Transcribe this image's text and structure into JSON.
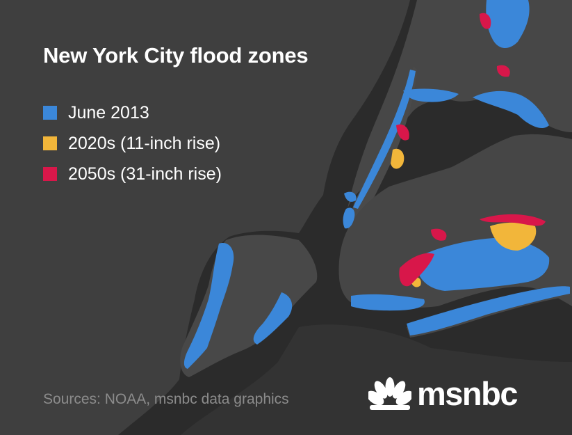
{
  "title": "New York City flood zones",
  "legend": [
    {
      "label": "June 2013",
      "color": "#3b87d9"
    },
    {
      "label": "2020s (11-inch rise)",
      "color": "#f2b63a"
    },
    {
      "label": "2050s (31-inch rise)",
      "color": "#d8174a"
    }
  ],
  "sources": "Sources:  NOAA, msnbc data graphics",
  "brand": {
    "name": "msnbc",
    "logo_icon": "nbc-peacock-icon"
  },
  "colors": {
    "land": "#424242",
    "water": "#2b2b2b",
    "text": "#ffffff",
    "muted_text": "#8c8c8c"
  }
}
